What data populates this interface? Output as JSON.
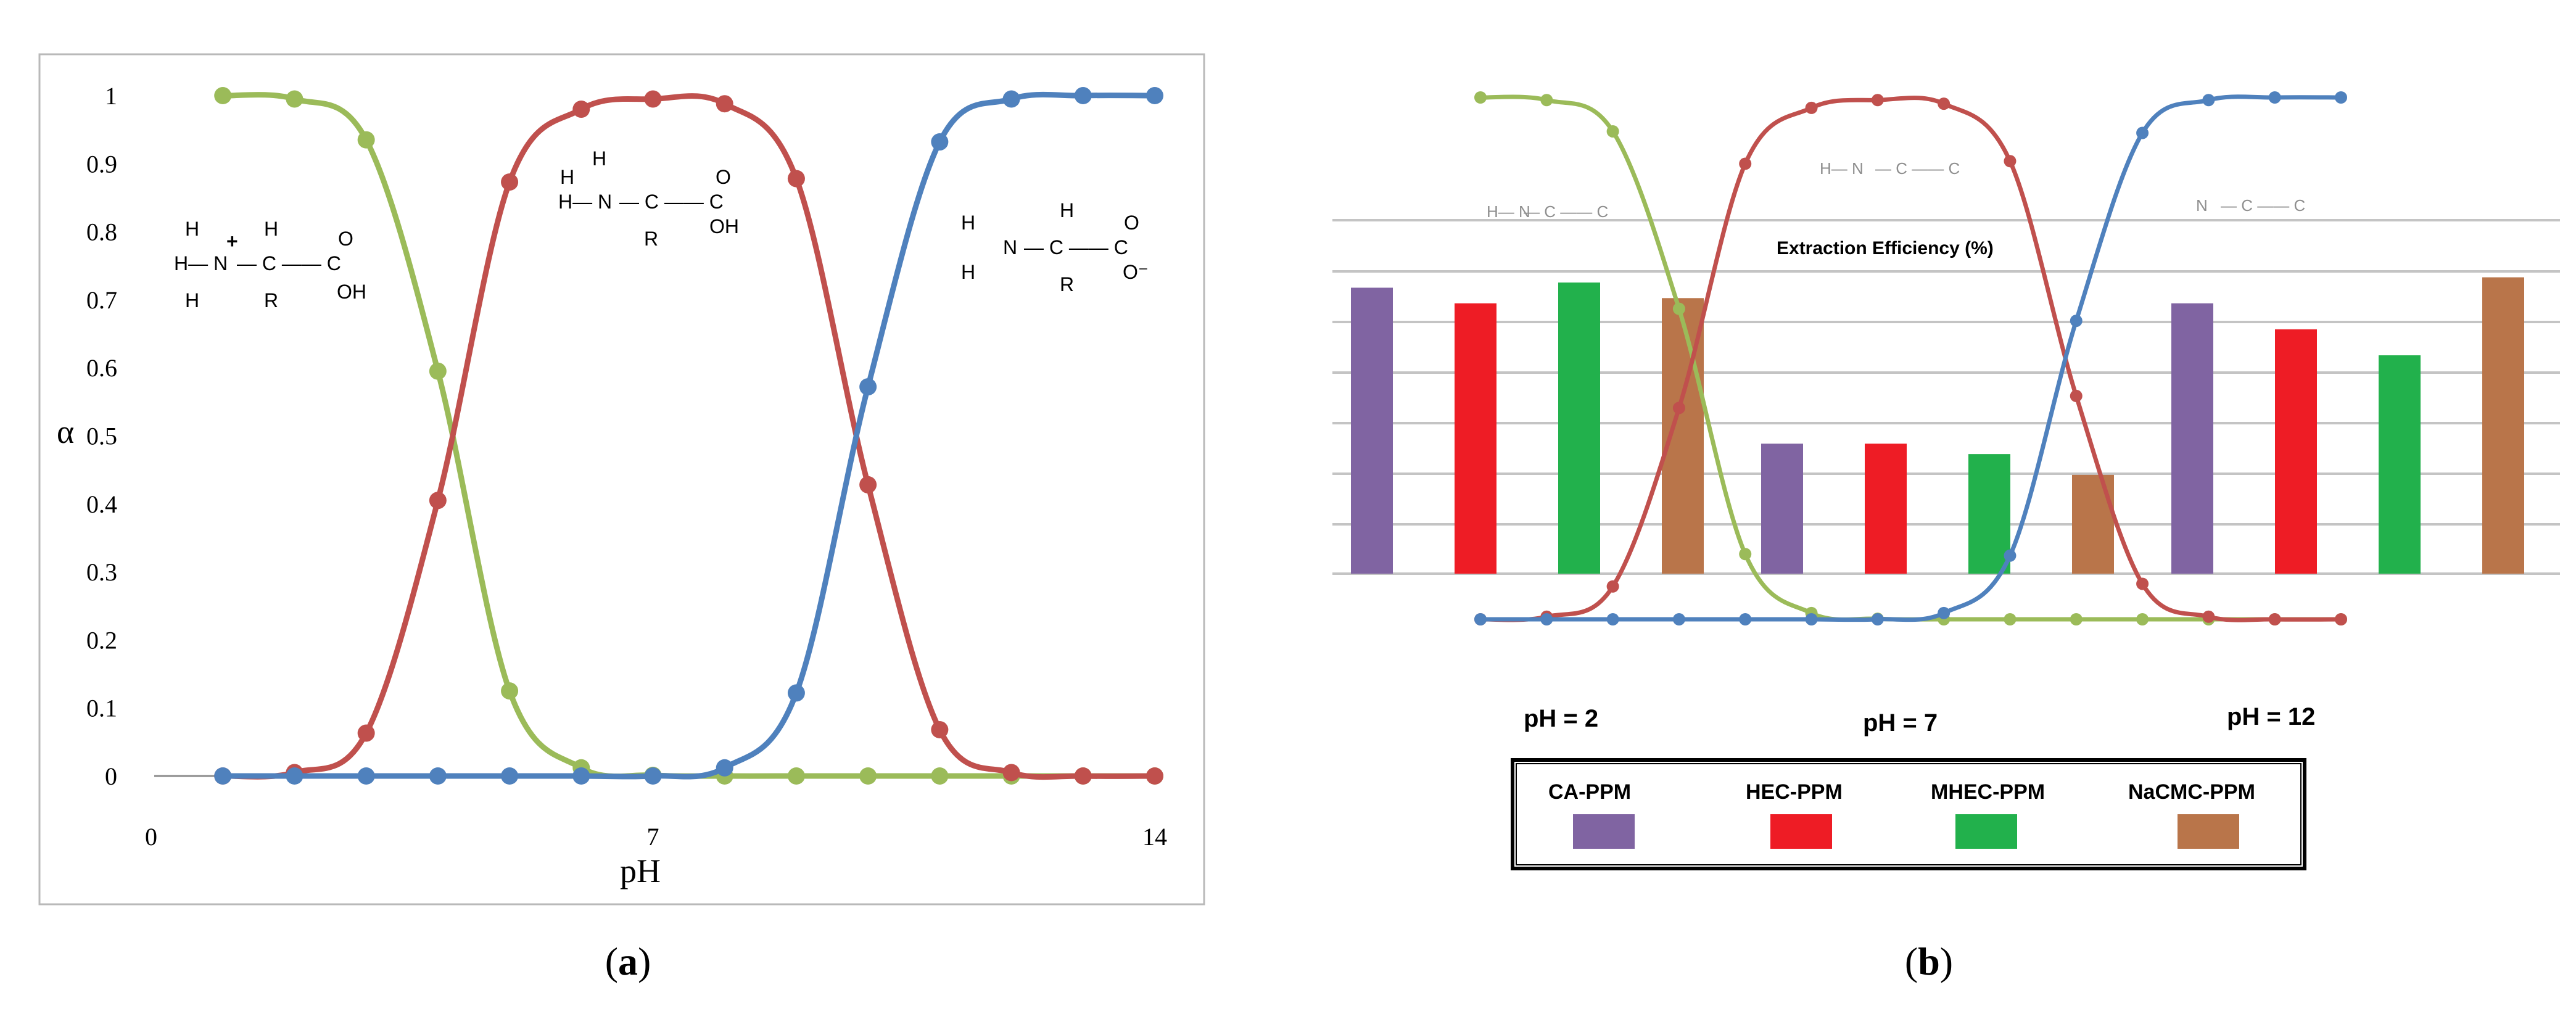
{
  "panel_a_label": "a",
  "panel_b_label": "b",
  "chart_data": [
    {
      "type": "line",
      "title": "",
      "xlabel": "pH",
      "ylabel": "α",
      "xlim": [
        0,
        14
      ],
      "ylim": [
        0,
        1
      ],
      "x_ticks": [
        "0",
        "7",
        "14"
      ],
      "y_ticks": [
        "0",
        "0.1",
        "0.2",
        "0.3",
        "0.4",
        "0.5",
        "0.6",
        "0.7",
        "0.8",
        "0.9",
        "1"
      ],
      "grid": false,
      "x": [
        1,
        2,
        3,
        4,
        5,
        6,
        7,
        8,
        9,
        10,
        11,
        12,
        13,
        14
      ],
      "series": [
        {
          "color": "#9bbb59",
          "values": [
            1.0,
            0.995,
            0.935,
            0.595,
            0.125,
            0.012,
            0.001,
            0.0,
            0.0,
            0.0,
            0.0,
            0.0,
            0.0,
            0.0
          ]
        },
        {
          "color": "#c0504d",
          "values": [
            0.0,
            0.005,
            0.063,
            0.405,
            0.873,
            0.98,
            0.995,
            0.988,
            0.878,
            0.428,
            0.068,
            0.005,
            0.0,
            0.0
          ]
        },
        {
          "color": "#4f81bd",
          "values": [
            0.0,
            0.0,
            0.0,
            0.0,
            0.0,
            0.0,
            0.0,
            0.012,
            0.122,
            0.572,
            0.932,
            0.995,
            1.0,
            1.0
          ]
        }
      ],
      "annotations": {
        "cation": {
          "plus": "+",
          "h_top": "H",
          "h_left": "H",
          "n_group": "H— N",
          "h_bottom": "H",
          "c_chain": "— C —— C",
          "c_h": "H",
          "r": "R",
          "o": "O",
          "oh": "OH"
        },
        "zwitter": {
          "n_h_top": "H",
          "n_group": "H— N",
          "c_chain": "— C —— C",
          "c_h": "H",
          "r": "R",
          "o": "O",
          "oh": "OH"
        },
        "anion": {
          "h_top": "H",
          "n_group": "N",
          "h_bottom": "H",
          "c_chain": "— C —— C",
          "c_h": "H",
          "r": "R",
          "o": "O",
          "o_minus": "O⁻"
        }
      }
    },
    {
      "type": "bar",
      "title": "Extraction Efficiency (%)",
      "groups": [
        "pH = 2",
        "pH = 7",
        "pH = 12"
      ],
      "series": [
        {
          "name": "CA-PPM",
          "color": "#8064a2",
          "values": [
            55,
            25,
            52
          ]
        },
        {
          "name": "HEC-PPM",
          "color": "#ee1c25",
          "values": [
            52,
            25,
            47
          ]
        },
        {
          "name": "MHEC-PPM",
          "color": "#22b14c",
          "values": [
            56,
            23,
            42
          ]
        },
        {
          "name": "NaCMC-PPM",
          "color": "#b9754a",
          "values": [
            53,
            19,
            57
          ]
        }
      ],
      "ylim": [
        0,
        70
      ],
      "grid": true,
      "legend_position": "bottom",
      "overlay_x": [
        1,
        2,
        3,
        4,
        5,
        6,
        7,
        8,
        9,
        10,
        11,
        12,
        13,
        14
      ],
      "overlay_series": [
        {
          "color": "#9bbb59",
          "values": [
            1.0,
            0.995,
            0.935,
            0.595,
            0.125,
            0.012,
            0.001,
            0.0,
            0.0,
            0.0,
            0.0,
            0.0,
            0.0,
            0.0
          ]
        },
        {
          "color": "#c0504d",
          "values": [
            0.0,
            0.005,
            0.063,
            0.405,
            0.873,
            0.98,
            0.995,
            0.988,
            0.878,
            0.428,
            0.068,
            0.005,
            0.0,
            0.0
          ]
        },
        {
          "color": "#4f81bd",
          "values": [
            0.0,
            0.0,
            0.0,
            0.0,
            0.0,
            0.0,
            0.0,
            0.012,
            0.122,
            0.572,
            0.932,
            0.995,
            1.0,
            1.0
          ]
        }
      ]
    }
  ]
}
